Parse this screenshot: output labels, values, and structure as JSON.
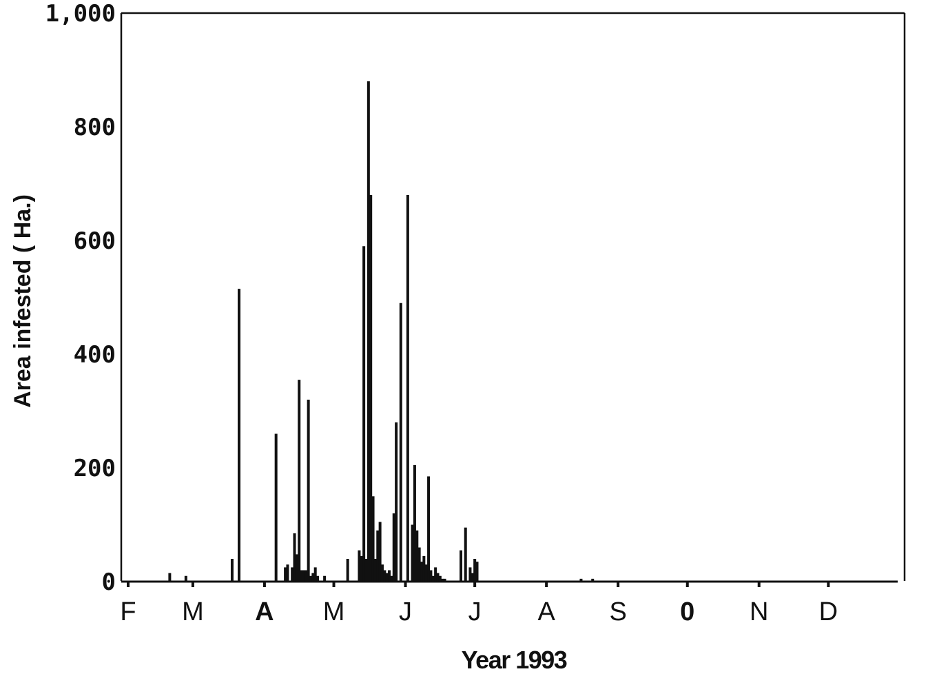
{
  "chart_data": {
    "type": "bar",
    "title": "",
    "xlabel": "Year 1993",
    "ylabel": "Area infested ( Ha.)",
    "ylim": [
      0,
      1000
    ],
    "xlim_days": [
      32,
      365
    ],
    "grid": false,
    "y_ticks": [
      {
        "value": 0,
        "label": "0"
      },
      {
        "value": 200,
        "label": "200"
      },
      {
        "value": 400,
        "label": "400"
      },
      {
        "value": 600,
        "label": "600"
      },
      {
        "value": 800,
        "label": "800"
      },
      {
        "value": 1000,
        "label": "1,000"
      }
    ],
    "months": [
      {
        "label": "F",
        "start_day": 32,
        "bold": false
      },
      {
        "label": "M",
        "start_day": 60,
        "bold": false
      },
      {
        "label": "A",
        "start_day": 91,
        "bold": true
      },
      {
        "label": "M",
        "start_day": 121,
        "bold": false
      },
      {
        "label": "J",
        "start_day": 152,
        "bold": false
      },
      {
        "label": "J",
        "start_day": 182,
        "bold": false
      },
      {
        "label": "A",
        "start_day": 213,
        "bold": false
      },
      {
        "label": "S",
        "start_day": 244,
        "bold": false
      },
      {
        "label": "0",
        "start_day": 274,
        "bold": true
      },
      {
        "label": "N",
        "start_day": 305,
        "bold": false
      },
      {
        "label": "D",
        "start_day": 335,
        "bold": false
      }
    ],
    "series": [
      {
        "day_of_year": [
          50,
          57,
          77,
          80,
          96,
          100,
          101,
          103,
          104,
          105,
          106,
          107,
          108,
          109,
          110,
          111,
          112,
          113,
          114,
          117,
          127,
          132,
          133,
          134,
          135,
          136,
          137,
          138,
          139,
          140,
          141,
          142,
          143,
          144,
          145,
          146,
          147,
          148,
          150,
          153,
          155,
          156,
          157,
          158,
          159,
          160,
          161,
          162,
          163,
          164,
          165,
          166,
          167,
          168,
          169,
          176,
          178,
          180,
          181,
          182,
          183,
          228,
          233
        ],
        "values": [
          15,
          10,
          40,
          515,
          260,
          25,
          30,
          25,
          85,
          48,
          355,
          20,
          20,
          20,
          320,
          10,
          15,
          25,
          10,
          10,
          40,
          55,
          45,
          590,
          40,
          880,
          680,
          150,
          40,
          90,
          105,
          30,
          20,
          15,
          20,
          10,
          120,
          280,
          490,
          680,
          100,
          205,
          90,
          60,
          35,
          45,
          30,
          185,
          20,
          10,
          25,
          15,
          10,
          5,
          5,
          55,
          95,
          25,
          15,
          40,
          35,
          5,
          5
        ]
      }
    ]
  }
}
